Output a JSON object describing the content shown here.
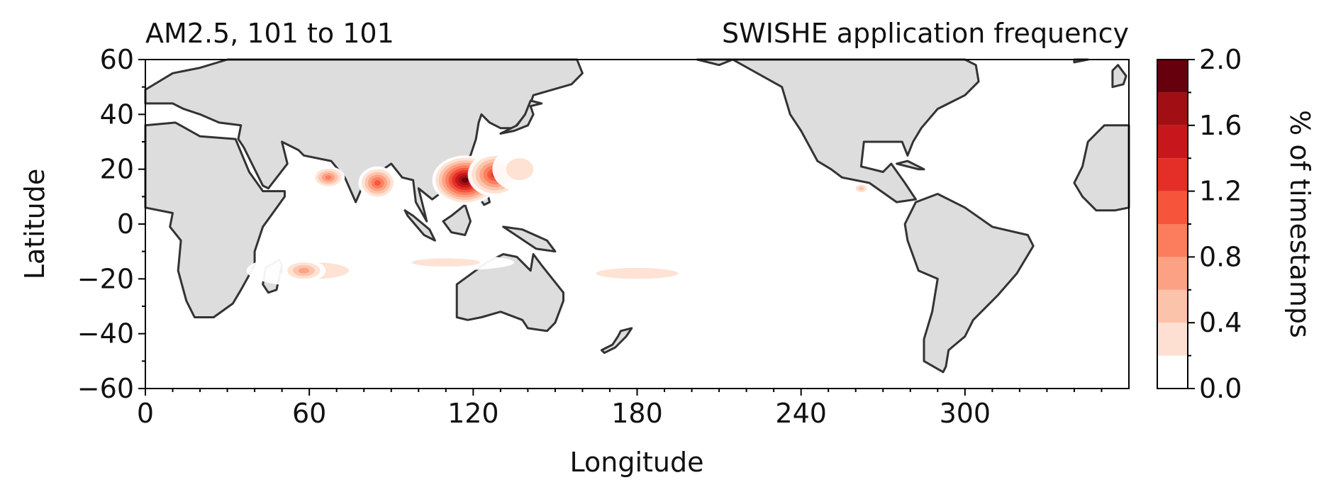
{
  "chart_data": {
    "type": "heatmap",
    "title_left": "AM2.5, 101 to 101",
    "title_right": "SWISHE application frequency",
    "xlabel": "Longitude",
    "ylabel": "Latitude",
    "xlim": [
      0,
      360
    ],
    "ylim": [
      -60,
      60
    ],
    "xticks": [
      0,
      60,
      120,
      180,
      240,
      300
    ],
    "xtick_labels": [
      "0",
      "60",
      "120",
      "180",
      "240",
      "300"
    ],
    "yticks": [
      60,
      40,
      20,
      0,
      -20,
      -40,
      -60
    ],
    "ytick_labels": [
      "60",
      "40",
      "20",
      "0",
      "−20",
      "−40",
      "−60"
    ],
    "colorbar": {
      "label": "% of timestamps",
      "range": [
        0,
        2.0
      ],
      "levels": [
        0,
        0.2,
        0.4,
        0.6,
        0.8,
        1.0,
        1.2,
        1.4,
        1.6,
        1.8,
        2.0
      ],
      "tick_values": [
        0.0,
        0.4,
        0.8,
        1.2,
        1.6,
        2.0
      ],
      "tick_labels": [
        "0.0",
        "0.4",
        "0.8",
        "1.2",
        "1.6",
        "2.0"
      ],
      "colors": [
        "#ffffff",
        "#fee0d2",
        "#fcc3ab",
        "#fca183",
        "#fb7d5d",
        "#f6553c",
        "#e32f27",
        "#c7171c",
        "#a10f15",
        "#67000d"
      ]
    },
    "land_color": "#dddddd",
    "coast_color": "#333333",
    "regions": [
      {
        "lon": 67,
        "lat": 17,
        "dlon": 6,
        "dlat": 4,
        "value": 0.9
      },
      {
        "lon": 85,
        "lat": 15,
        "dlon": 7,
        "dlat": 6,
        "value": 1.2
      },
      {
        "lon": 117,
        "lat": 16,
        "dlon": 12,
        "dlat": 9,
        "value": 2.0
      },
      {
        "lon": 128,
        "lat": 18,
        "dlon": 10,
        "dlat": 8,
        "value": 1.4
      },
      {
        "lon": 137,
        "lat": 20,
        "dlon": 10,
        "dlat": 8,
        "value": 0.3
      },
      {
        "lon": 262,
        "lat": 13,
        "dlon": 3,
        "dlat": 2,
        "value": 0.6
      },
      {
        "lon": 62,
        "lat": -17,
        "dlon": 25,
        "dlat": 6,
        "value": 0.3
      },
      {
        "lon": 58,
        "lat": -17,
        "dlon": 8,
        "dlat": 4,
        "value": 0.8
      },
      {
        "lon": 110,
        "lat": -14,
        "dlon": 25,
        "dlat": 3,
        "value": 0.3
      },
      {
        "lon": 180,
        "lat": -18,
        "dlon": 30,
        "dlat": 4,
        "value": 0.3
      }
    ]
  }
}
